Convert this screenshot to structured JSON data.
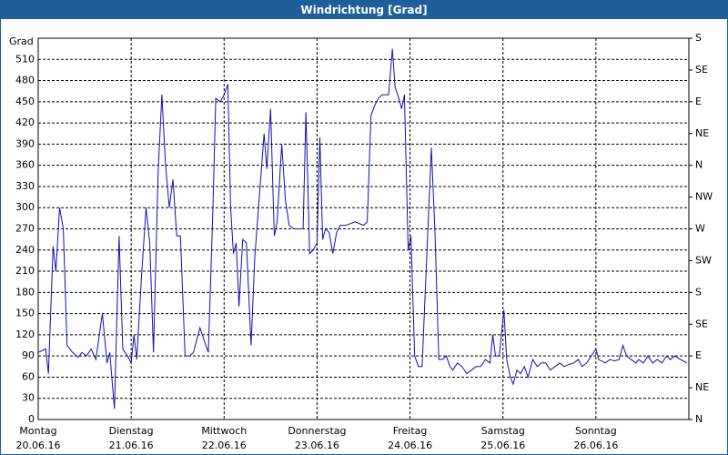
{
  "chart_data": {
    "type": "line",
    "title": "Windrichtung [Grad]",
    "y_label": "Grad",
    "xlim": [
      0,
      7
    ],
    "ylim": [
      0,
      540
    ],
    "y2lim": [
      0,
      540
    ],
    "grid": true,
    "xticks": [
      {
        "value": 0,
        "label": [
          "Montag",
          "20.06.16"
        ]
      },
      {
        "value": 1,
        "label": [
          "Dienstag",
          "21.06.16"
        ]
      },
      {
        "value": 2,
        "label": [
          "Mittwoch",
          "22.06.16"
        ]
      },
      {
        "value": 3,
        "label": [
          "Donnerstag",
          "23.06.16"
        ]
      },
      {
        "value": 4,
        "label": [
          "Freitag",
          "24.06.16"
        ]
      },
      {
        "value": 5,
        "label": [
          "Samstag",
          "25.06.16"
        ]
      },
      {
        "value": 6,
        "label": [
          "Sonntag",
          "26.06.16"
        ]
      }
    ],
    "yticks": [
      0,
      30,
      60,
      90,
      120,
      150,
      180,
      210,
      240,
      270,
      300,
      330,
      360,
      390,
      420,
      450,
      480,
      510
    ],
    "y2ticks": [
      {
        "value": 0,
        "label": "N"
      },
      {
        "value": 45,
        "label": "NE"
      },
      {
        "value": 90,
        "label": "E"
      },
      {
        "value": 135,
        "label": "SE"
      },
      {
        "value": 180,
        "label": "S"
      },
      {
        "value": 225,
        "label": "SW"
      },
      {
        "value": 270,
        "label": "W"
      },
      {
        "value": 315,
        "label": "NW"
      },
      {
        "value": 360,
        "label": "N"
      },
      {
        "value": 405,
        "label": "NE"
      },
      {
        "value": 450,
        "label": "E"
      },
      {
        "value": 495,
        "label": "SE"
      },
      {
        "value": 540,
        "label": "S"
      }
    ],
    "x": [
      0,
      0.08,
      0.11,
      0.16,
      0.19,
      0.23,
      0.27,
      0.31,
      0.37,
      0.43,
      0.47,
      0.52,
      0.57,
      0.62,
      0.69,
      0.74,
      0.77,
      0.82,
      0.87,
      0.91,
      0.96,
      1.0,
      1.03,
      1.06,
      1.11,
      1.16,
      1.2,
      1.24,
      1.29,
      1.33,
      1.37,
      1.41,
      1.45,
      1.49,
      1.53,
      1.58,
      1.63,
      1.67,
      1.74,
      1.79,
      1.83,
      1.88,
      1.91,
      1.96,
      2.0,
      2.04,
      2.07,
      2.1,
      2.13,
      2.16,
      2.2,
      2.24,
      2.29,
      2.33,
      2.37,
      2.43,
      2.46,
      2.5,
      2.54,
      2.57,
      2.62,
      2.66,
      2.7,
      2.75,
      2.82,
      2.85,
      2.88,
      2.92,
      2.96,
      3.0,
      3.03,
      3.06,
      3.09,
      3.13,
      3.17,
      3.21,
      3.25,
      3.31,
      3.41,
      3.5,
      3.54,
      3.58,
      3.62,
      3.66,
      3.7,
      3.77,
      3.81,
      3.84,
      3.88,
      3.91,
      3.94,
      3.98,
      4.01,
      4.05,
      4.09,
      4.13,
      4.17,
      4.23,
      4.27,
      4.31,
      4.35,
      4.39,
      4.43,
      4.46,
      4.51,
      4.56,
      4.61,
      4.66,
      4.71,
      4.76,
      4.81,
      4.86,
      4.89,
      4.92,
      4.96,
      5.01,
      5.04,
      5.08,
      5.11,
      5.15,
      5.19,
      5.23,
      5.27,
      5.32,
      5.37,
      5.41,
      5.46,
      5.51,
      5.56,
      5.61,
      5.66,
      5.71,
      5.76,
      5.81,
      5.85,
      5.9,
      5.95,
      6.0,
      6.03,
      6.1,
      6.15,
      6.2,
      6.25,
      6.29,
      6.33,
      6.38,
      6.43,
      6.46,
      6.51,
      6.56,
      6.61,
      6.66,
      6.71,
      6.76,
      6.8,
      6.85,
      6.91,
      6.98
    ],
    "series": [
      {
        "color": "#1010b0",
        "values": [
          95,
          100,
          65,
          245,
          210,
          300,
          270,
          105,
          95,
          88,
          95,
          90,
          100,
          85,
          150,
          80,
          95,
          15,
          260,
          100,
          90,
          80,
          120,
          85,
          200,
          300,
          250,
          95,
          350,
          460,
          360,
          300,
          340,
          260,
          260,
          90,
          90,
          95,
          130,
          110,
          95,
          300,
          455,
          450,
          460,
          475,
          300,
          235,
          250,
          160,
          255,
          250,
          105,
          230,
          300,
          405,
          355,
          440,
          260,
          280,
          390,
          310,
          275,
          270,
          270,
          270,
          435,
          235,
          240,
          250,
          400,
          255,
          270,
          265,
          235,
          265,
          275,
          275,
          280,
          275,
          280,
          430,
          445,
          455,
          460,
          460,
          525,
          470,
          455,
          440,
          460,
          240,
          260,
          90,
          75,
          75,
          200,
          385,
          260,
          85,
          85,
          90,
          75,
          70,
          80,
          75,
          65,
          70,
          75,
          75,
          85,
          80,
          120,
          90,
          90,
          155,
          85,
          60,
          50,
          70,
          65,
          75,
          60,
          85,
          75,
          80,
          80,
          70,
          75,
          80,
          75,
          78,
          80,
          85,
          75,
          80,
          90,
          100,
          85,
          80,
          85,
          83,
          85,
          105,
          90,
          85,
          80,
          85,
          80,
          90,
          80,
          85,
          80,
          90,
          85,
          90,
          85,
          80
        ]
      }
    ]
  }
}
